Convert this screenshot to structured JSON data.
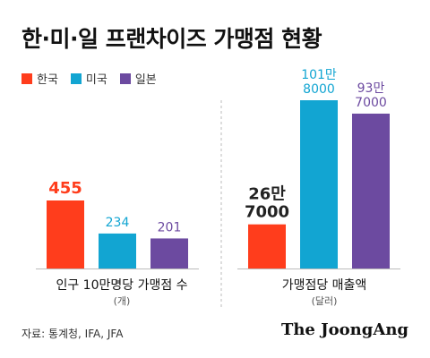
{
  "title": "한·미·일 프랜차이즈 가맹점 현황",
  "legend": [
    {
      "label": "한국",
      "color": "#ff3d1c"
    },
    {
      "label": "미국",
      "color": "#12a5d2"
    },
    {
      "label": "일본",
      "color": "#6c4aa0"
    }
  ],
  "chart_data": [
    {
      "type": "bar",
      "categories": [
        "한국",
        "미국",
        "일본"
      ],
      "values": [
        455,
        234,
        201
      ],
      "value_labels": [
        "455",
        "234",
        "201"
      ],
      "colors": [
        "#ff3d1c",
        "#12a5d2",
        "#6c4aa0"
      ],
      "label_colors": [
        "#ff3d1c",
        "#12a5d2",
        "#6c4aa0"
      ],
      "xlabel": "인구 10만명당 가맹점 수",
      "unit": "(개)"
    },
    {
      "type": "bar",
      "categories": [
        "한국",
        "미국",
        "일본"
      ],
      "values": [
        267000,
        1018000,
        937000
      ],
      "value_labels": [
        [
          "26만",
          "7000"
        ],
        [
          "101만",
          "8000"
        ],
        [
          "93만",
          "7000"
        ]
      ],
      "colors": [
        "#ff3d1c",
        "#12a5d2",
        "#6c4aa0"
      ],
      "label_colors": [
        "#222222",
        "#12a5d2",
        "#6c4aa0"
      ],
      "xlabel": "가맹점당 매출액",
      "unit": "(달러)"
    }
  ],
  "source": "자료: 통계청, IFA, JFA",
  "brand": "The JoongAng"
}
